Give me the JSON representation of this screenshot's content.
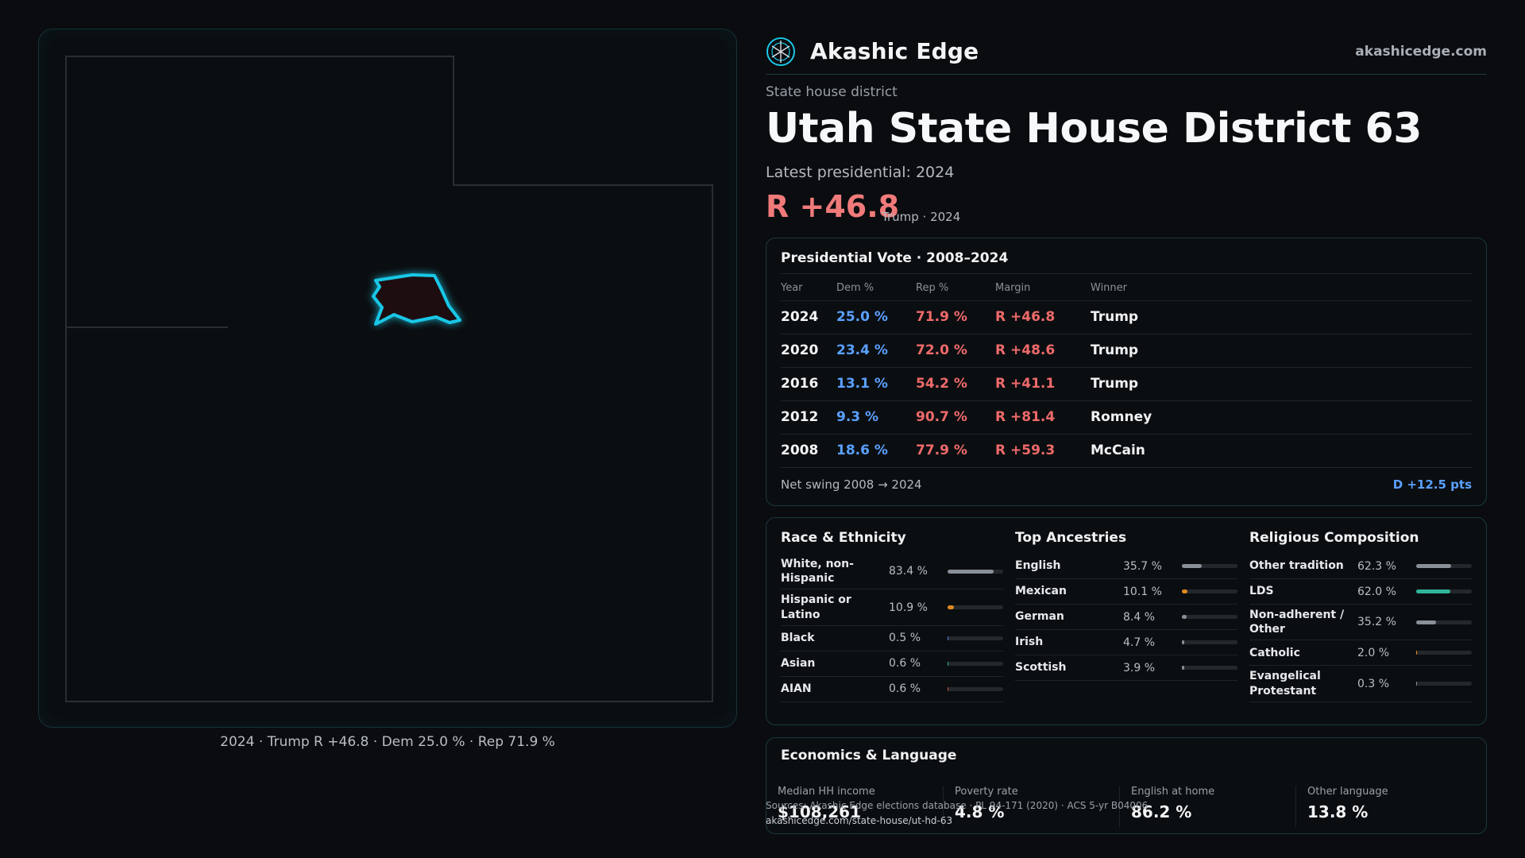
{
  "brand": {
    "name": "Akashic Edge",
    "url": "akashicedge.com"
  },
  "header": {
    "kicker": "State house district",
    "title": "Utah State House District 63",
    "latest_label": "Latest presidential: 2024",
    "margin": "R +46.8",
    "margin_sub": "Trump · 2024"
  },
  "map": {
    "caption": "2024 · Trump R +46.8 · Dem 25.0 % · Rep 71.9 %",
    "highlight_color": "#19c7e6"
  },
  "presidential": {
    "title": "Presidential Vote · 2008–2024",
    "columns": [
      "Year",
      "Dem %",
      "Rep %",
      "Margin",
      "Winner"
    ],
    "rows": [
      {
        "year": "2024",
        "dem": "25.0 %",
        "rep": "71.9 %",
        "margin": "R +46.8",
        "winner": "Trump"
      },
      {
        "year": "2020",
        "dem": "23.4 %",
        "rep": "72.0 %",
        "margin": "R +48.6",
        "winner": "Trump"
      },
      {
        "year": "2016",
        "dem": "13.1 %",
        "rep": "54.2 %",
        "margin": "R +41.1",
        "winner": "Trump"
      },
      {
        "year": "2012",
        "dem": "9.3 %",
        "rep": "90.7 %",
        "margin": "R +81.4",
        "winner": "Romney"
      },
      {
        "year": "2008",
        "dem": "18.6 %",
        "rep": "77.9 %",
        "margin": "R +59.3",
        "winner": "McCain"
      }
    ],
    "swing_label": "Net swing 2008 → 2024",
    "swing_value": "D +12.5 pts"
  },
  "race": {
    "title": "Race & Ethnicity",
    "items": [
      {
        "label": "White, non-Hispanic",
        "value": "83.4 %",
        "pct": 83.4,
        "color": "#8a9099"
      },
      {
        "label": "Hispanic or Latino",
        "value": "10.9 %",
        "pct": 10.9,
        "color": "#e08a1e"
      },
      {
        "label": "Black",
        "value": "0.5 %",
        "pct": 0.5,
        "color": "#5a7bd8"
      },
      {
        "label": "Asian",
        "value": "0.6 %",
        "pct": 0.6,
        "color": "#2fb59a"
      },
      {
        "label": "AIAN",
        "value": "0.6 %",
        "pct": 0.6,
        "color": "#c0572f"
      }
    ]
  },
  "ancestry": {
    "title": "Top Ancestries",
    "items": [
      {
        "label": "English",
        "value": "35.7 %",
        "pct": 35.7,
        "color": "#8a9099"
      },
      {
        "label": "Mexican",
        "value": "10.1 %",
        "pct": 10.1,
        "color": "#e08a1e"
      },
      {
        "label": "German",
        "value": "8.4 %",
        "pct": 8.4,
        "color": "#8a9099"
      },
      {
        "label": "Irish",
        "value": "4.7 %",
        "pct": 4.7,
        "color": "#8a9099"
      },
      {
        "label": "Scottish",
        "value": "3.9 %",
        "pct": 3.9,
        "color": "#8a9099"
      }
    ]
  },
  "religion": {
    "title": "Religious Composition",
    "items": [
      {
        "label": "Other tradition",
        "value": "62.3 %",
        "pct": 62.3,
        "color": "#8a9099"
      },
      {
        "label": "LDS",
        "value": "62.0 %",
        "pct": 62.0,
        "color": "#2fb59a"
      },
      {
        "label": "Non-adherent / Other",
        "value": "35.2 %",
        "pct": 35.2,
        "color": "#8a9099"
      },
      {
        "label": "Catholic",
        "value": "2.0 %",
        "pct": 2.0,
        "color": "#e08a1e"
      },
      {
        "label": "Evangelical Protestant",
        "value": "0.3 %",
        "pct": 0.3,
        "color": "#8a9099"
      }
    ]
  },
  "economics": {
    "title": "Economics & Language",
    "cells": [
      {
        "label": "Median HH income",
        "value": "$108,261"
      },
      {
        "label": "Poverty rate",
        "value": "4.8 %"
      },
      {
        "label": "English at home",
        "value": "86.2 %"
      },
      {
        "label": "Other language",
        "value": "13.8 %"
      }
    ]
  },
  "sources": {
    "text": "Sources: Akashic Edge elections database · PL 94-171 (2020) · ACS 5-yr B04006",
    "url": "akashicedge.com/state-house/ut-hd-63"
  }
}
